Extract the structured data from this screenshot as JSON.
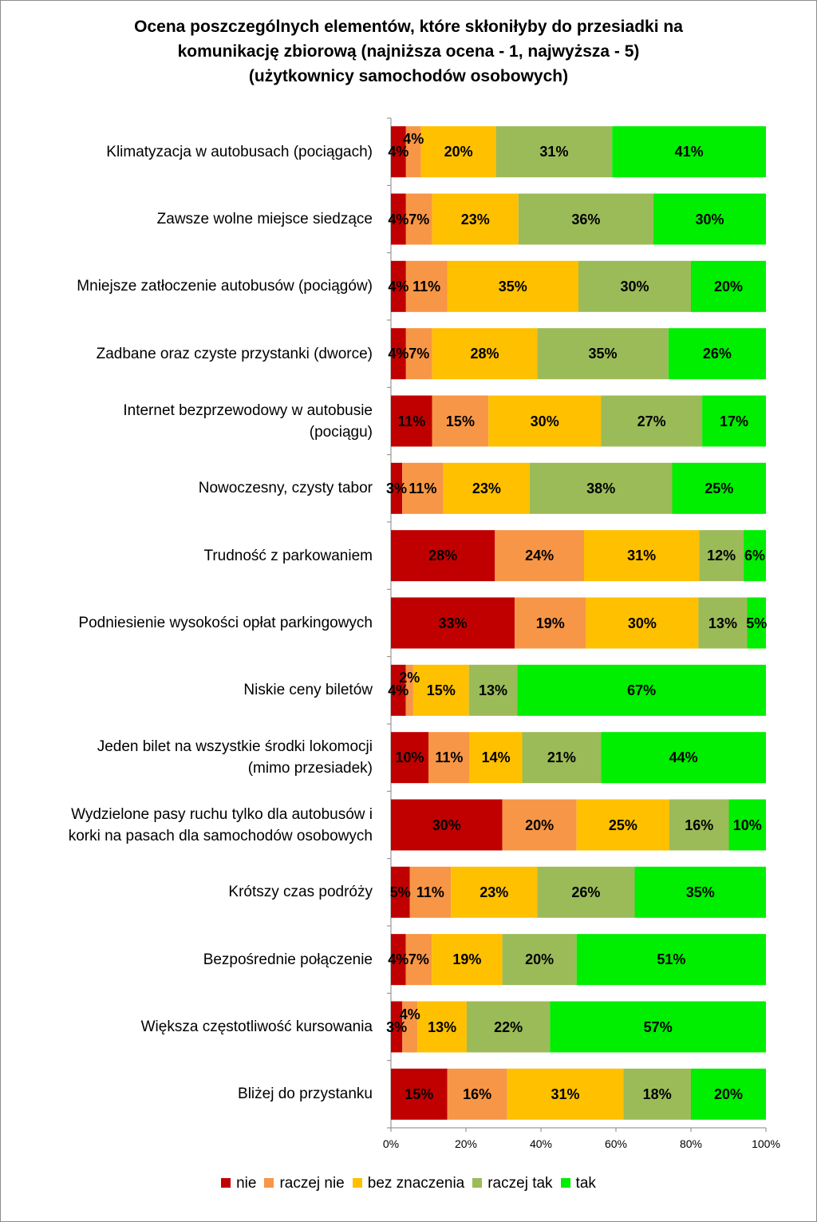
{
  "chart_data": {
    "type": "bar",
    "orientation": "horizontal",
    "stacked": "percent",
    "title_lines": [
      "Ocena poszczególnych elementów, które skłoniłyby do przesiadki na",
      "komunikację zbiorową  (najniższa ocena - 1, najwyższa - 5)",
      "(użytkownicy samochodów osobowych)"
    ],
    "categories": [
      [
        "Klimatyzacja w autobusach (pociągach)"
      ],
      [
        "Zawsze wolne miejsce siedzące"
      ],
      [
        "Mniejsze zatłoczenie autobusów (pociągów)"
      ],
      [
        "Zadbane oraz czyste przystanki (dworce)"
      ],
      [
        "Internet bezprzewodowy w autobusie",
        "(pociągu)"
      ],
      [
        "Nowoczesny, czysty tabor"
      ],
      [
        "Trudność z parkowaniem"
      ],
      [
        "Podniesienie wysokości opłat parkingowych"
      ],
      [
        "Niskie ceny biletów"
      ],
      [
        "Jeden bilet na wszystkie środki lokomocji",
        "(mimo przesiadek)"
      ],
      [
        "Wydzielone pasy ruchu tylko dla autobusów i",
        "korki na pasach dla samochodów osobowych"
      ],
      [
        "Krótszy czas podróży"
      ],
      [
        "Bezpośrednie połączenie"
      ],
      [
        "Większa częstotliwość kursowania"
      ],
      [
        "Bliżej do przystanku"
      ]
    ],
    "series": [
      {
        "name": "nie",
        "color": "#c00000",
        "values": [
          4,
          4,
          4,
          4,
          11,
          3,
          28,
          33,
          4,
          10,
          30,
          5,
          4,
          3,
          15
        ]
      },
      {
        "name": "raczej nie",
        "color": "#f79646",
        "values": [
          4,
          7,
          11,
          7,
          15,
          11,
          24,
          19,
          2,
          11,
          20,
          11,
          7,
          4,
          16
        ]
      },
      {
        "name": "bez znaczenia",
        "color": "#ffc000",
        "values": [
          20,
          23,
          35,
          28,
          30,
          23,
          31,
          30,
          15,
          14,
          25,
          23,
          19,
          13,
          31
        ]
      },
      {
        "name": "raczej tak",
        "color": "#9bbb59",
        "values": [
          31,
          36,
          30,
          35,
          27,
          38,
          12,
          13,
          13,
          21,
          16,
          26,
          20,
          22,
          18
        ]
      },
      {
        "name": "tak",
        "color": "#00ee00",
        "values": [
          41,
          30,
          20,
          26,
          17,
          25,
          6,
          5,
          67,
          44,
          10,
          35,
          51,
          57,
          20
        ]
      }
    ],
    "x_ticks": [
      "0%",
      "20%",
      "40%",
      "60%",
      "80%",
      "100%"
    ],
    "xlim": [
      0,
      100
    ],
    "legend_position": "bottom",
    "grid": false
  }
}
